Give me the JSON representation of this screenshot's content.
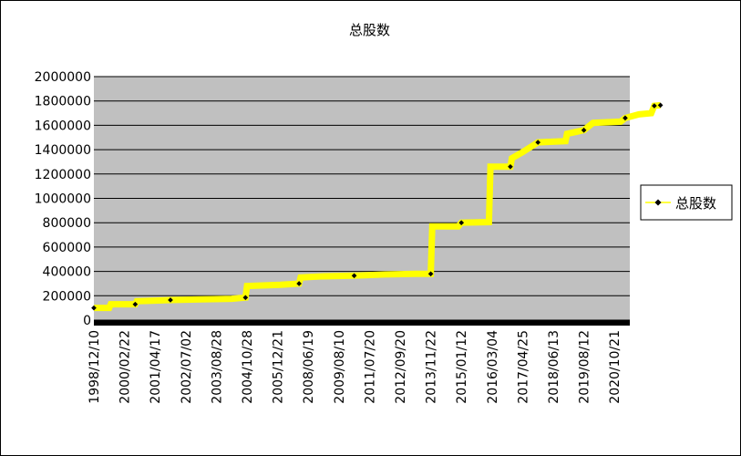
{
  "chart_data": {
    "type": "line",
    "title": "总股数",
    "xlabel": "",
    "ylabel": "",
    "ylim": [
      0,
      2000000
    ],
    "yticks": [
      0,
      200000,
      400000,
      600000,
      800000,
      1000000,
      1200000,
      1400000,
      1600000,
      1800000,
      2000000
    ],
    "categories": [
      "1998/12/10",
      "2000/02/22",
      "2001/04/17",
      "2002/07/02",
      "2003/08/28",
      "2004/10/28",
      "2005/12/21",
      "2008/06/19",
      "2009/08/10",
      "2011/07/20",
      "2012/09/20",
      "2013/11/22",
      "2015/01/12",
      "2016/03/04",
      "2017/04/25",
      "2018/06/13",
      "2019/08/12",
      "2020/10/21"
    ],
    "legend": "right",
    "grid": true,
    "colors": {
      "line": "#ffff00",
      "marker": "#000000",
      "plot_bg": "#c0c0c0"
    },
    "series": [
      {
        "name": "总股数",
        "values": [
          {
            "x": 0.0,
            "y": 100000
          },
          {
            "x": 0.5,
            "y": 100000
          },
          {
            "x": 0.55,
            "y": 130000
          },
          {
            "x": 1.35,
            "y": 130000
          },
          {
            "x": 1.4,
            "y": 155000
          },
          {
            "x": 2.0,
            "y": 160000
          },
          {
            "x": 2.5,
            "y": 165000
          },
          {
            "x": 3.5,
            "y": 170000
          },
          {
            "x": 4.5,
            "y": 175000
          },
          {
            "x": 4.95,
            "y": 185000
          },
          {
            "x": 5.0,
            "y": 280000
          },
          {
            "x": 6.1,
            "y": 290000
          },
          {
            "x": 6.7,
            "y": 300000
          },
          {
            "x": 6.75,
            "y": 350000
          },
          {
            "x": 7.5,
            "y": 360000
          },
          {
            "x": 8.5,
            "y": 365000
          },
          {
            "x": 9.5,
            "y": 375000
          },
          {
            "x": 10.5,
            "y": 380000
          },
          {
            "x": 11.0,
            "y": 380000
          },
          {
            "x": 11.05,
            "y": 770000
          },
          {
            "x": 11.9,
            "y": 770000
          },
          {
            "x": 12.0,
            "y": 800000
          },
          {
            "x": 12.9,
            "y": 805000
          },
          {
            "x": 12.95,
            "y": 1260000
          },
          {
            "x": 13.6,
            "y": 1260000
          },
          {
            "x": 13.65,
            "y": 1330000
          },
          {
            "x": 14.0,
            "y": 1380000
          },
          {
            "x": 14.5,
            "y": 1460000
          },
          {
            "x": 15.4,
            "y": 1470000
          },
          {
            "x": 15.45,
            "y": 1530000
          },
          {
            "x": 16.0,
            "y": 1560000
          },
          {
            "x": 16.3,
            "y": 1620000
          },
          {
            "x": 17.2,
            "y": 1630000
          },
          {
            "x": 17.35,
            "y": 1660000
          },
          {
            "x": 17.8,
            "y": 1690000
          },
          {
            "x": 18.2,
            "y": 1700000
          },
          {
            "x": 18.3,
            "y": 1760000
          },
          {
            "x": 18.5,
            "y": 1765000
          }
        ]
      }
    ]
  }
}
